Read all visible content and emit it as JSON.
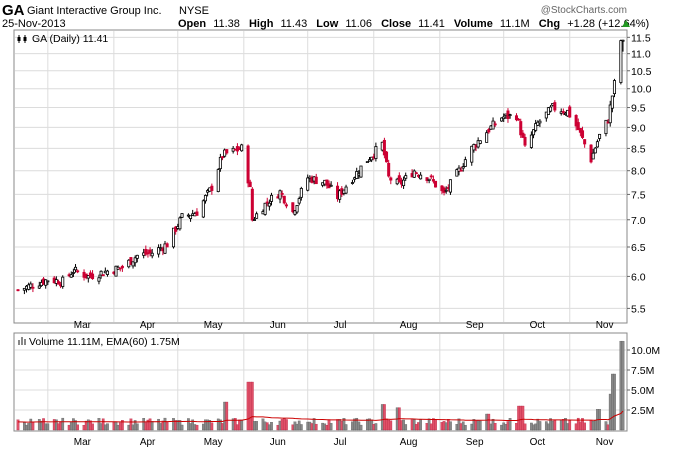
{
  "header": {
    "symbol": "GA",
    "company": "Giant Interactive Group Inc.",
    "exchange": "NYSE",
    "date": "25-Nov-2013",
    "copyright": "@StockCharts.com",
    "open_label": "Open",
    "open": "11.38",
    "high_label": "High",
    "high": "11.43",
    "low_label": "Low",
    "low": "11.06",
    "close_label": "Close",
    "close": "11.41",
    "volume_label": "Volume",
    "volume": "11.1M",
    "chg_label": "Chg",
    "chg": "+1.28 (+12.64%)"
  },
  "colors": {
    "up": "#000000",
    "down": "#cc0033",
    "vol_up": "#888888",
    "vol_down": "#e05068",
    "ema_line": "#cc0000",
    "grid": "#dcdcdc",
    "frame": "#888888",
    "up_arrow": "#229922"
  },
  "chart_data": [
    {
      "type": "candlestick",
      "title": "GA (Daily) 11.41",
      "icon": "candlestick-legend-icon",
      "x_tick_labels": [
        "Mar",
        "Apr",
        "May",
        "Jun",
        "Jul",
        "Aug",
        "Sep",
        "Oct",
        "Nov"
      ],
      "y_tick_labels": [
        "5.5",
        "6.0",
        "6.5",
        "7.0",
        "7.5",
        "8.0",
        "8.5",
        "9.0",
        "9.5",
        "10.0",
        "10.5",
        "11.0",
        "11.5"
      ],
      "ylim": [
        5.3,
        11.7
      ],
      "y_scale": "log",
      "grid": true,
      "series": [
        {
          "x": "2013-02-15",
          "close": 5.78
        },
        {
          "x": "2013-03-01",
          "close": 5.95
        },
        {
          "x": "2013-03-08",
          "close": 5.92
        },
        {
          "x": "2013-03-13",
          "close": 6.1
        },
        {
          "x": "2013-03-20",
          "close": 6.0
        },
        {
          "x": "2013-03-28",
          "close": 6.08
        },
        {
          "x": "2013-04-05",
          "close": 6.15
        },
        {
          "x": "2013-04-12",
          "close": 6.35
        },
        {
          "x": "2013-04-19",
          "close": 6.4
        },
        {
          "x": "2013-04-26",
          "close": 6.55
        },
        {
          "x": "2013-05-03",
          "close": 7.05
        },
        {
          "x": "2013-05-10",
          "close": 7.15
        },
        {
          "x": "2013-05-17",
          "close": 7.65
        },
        {
          "x": "2013-05-22",
          "close": 8.35
        },
        {
          "x": "2013-05-31",
          "close": 8.5
        },
        {
          "x": "2013-06-04",
          "close": 7.6
        },
        {
          "x": "2013-06-05",
          "close": 7.0
        },
        {
          "x": "2013-06-12",
          "close": 7.35
        },
        {
          "x": "2013-06-18",
          "close": 7.55
        },
        {
          "x": "2013-06-24",
          "close": 7.15
        },
        {
          "x": "2013-07-01",
          "close": 7.85
        },
        {
          "x": "2013-07-09",
          "close": 7.75
        },
        {
          "x": "2013-07-15",
          "close": 7.45
        },
        {
          "x": "2013-07-23",
          "close": 7.9
        },
        {
          "x": "2013-07-30",
          "close": 8.3
        },
        {
          "x": "2013-08-05",
          "close": 8.6
        },
        {
          "x": "2013-08-08",
          "close": 7.85
        },
        {
          "x": "2013-08-13",
          "close": 7.7
        },
        {
          "x": "2013-08-20",
          "close": 8.0
        },
        {
          "x": "2013-08-27",
          "close": 7.85
        },
        {
          "x": "2013-09-03",
          "close": 7.5
        },
        {
          "x": "2013-09-10",
          "close": 8.0
        },
        {
          "x": "2013-09-16",
          "close": 8.5
        },
        {
          "x": "2013-09-24",
          "close": 8.95
        },
        {
          "x": "2013-09-30",
          "close": 9.25
        },
        {
          "x": "2013-10-07",
          "close": 9.3
        },
        {
          "x": "2013-10-11",
          "close": 8.5
        },
        {
          "x": "2013-10-17",
          "close": 9.1
        },
        {
          "x": "2013-10-24",
          "close": 9.5
        },
        {
          "x": "2013-10-31",
          "close": 9.4
        },
        {
          "x": "2013-11-05",
          "close": 8.95
        },
        {
          "x": "2013-11-11",
          "close": 8.25
        },
        {
          "x": "2013-11-15",
          "close": 8.8
        },
        {
          "x": "2013-11-19",
          "close": 9.2
        },
        {
          "x": "2013-11-22",
          "close": 10.13
        },
        {
          "x": "2013-11-25",
          "close": 11.41
        }
      ]
    },
    {
      "type": "bar",
      "title": "Volume 11.11M, EMA(60) 1.75M",
      "icon": "volume-legend-icon",
      "x_tick_labels": [
        "Mar",
        "Apr",
        "May",
        "Jun",
        "Jul",
        "Aug",
        "Sep",
        "Oct",
        "Nov"
      ],
      "y_tick_labels": [
        "2.5M",
        "5.0M",
        "7.5M",
        "10.0M"
      ],
      "ylim": [
        0,
        12
      ],
      "unit": "M",
      "grid": true,
      "series": [
        {
          "x": "2013-03-01",
          "value": 0.8
        },
        {
          "x": "2013-04-01",
          "value": 1.0
        },
        {
          "x": "2013-05-01",
          "value": 1.2
        },
        {
          "x": "2013-05-24",
          "value": 3.5
        },
        {
          "x": "2013-06-04",
          "value": 6.0
        },
        {
          "x": "2013-07-01",
          "value": 1.0
        },
        {
          "x": "2013-08-05",
          "value": 3.2
        },
        {
          "x": "2013-08-12",
          "value": 2.8
        },
        {
          "x": "2013-09-23",
          "value": 2.0
        },
        {
          "x": "2013-10-09",
          "value": 3.0
        },
        {
          "x": "2013-11-15",
          "value": 2.6
        },
        {
          "x": "2013-11-21",
          "value": 4.5
        },
        {
          "x": "2013-11-22",
          "value": 7.0
        },
        {
          "x": "2013-11-25",
          "value": 11.11
        }
      ],
      "ema": {
        "name": "EMA(60)",
        "last": 1.75
      }
    }
  ]
}
